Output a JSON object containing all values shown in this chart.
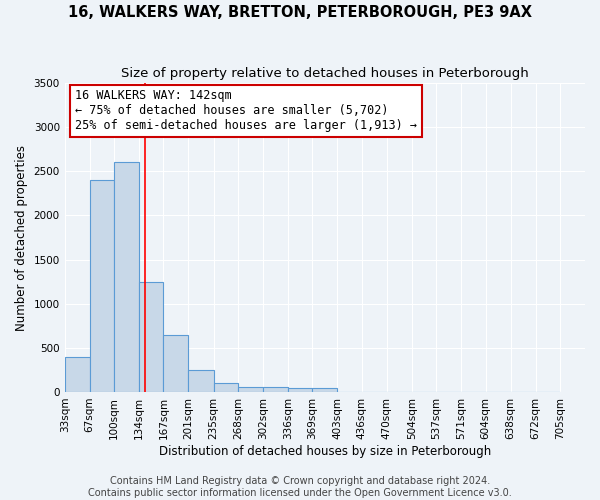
{
  "title": "16, WALKERS WAY, BRETTON, PETERBOROUGH, PE3 9AX",
  "subtitle": "Size of property relative to detached houses in Peterborough",
  "xlabel": "Distribution of detached houses by size in Peterborough",
  "ylabel": "Number of detached properties",
  "bar_edges": [
    33,
    67,
    100,
    134,
    167,
    201,
    235,
    268,
    302,
    336,
    369,
    403,
    436,
    470,
    504,
    537,
    571,
    604,
    638,
    672,
    705
  ],
  "bar_heights": [
    400,
    2400,
    2600,
    1250,
    640,
    250,
    100,
    60,
    60,
    40,
    40,
    0,
    0,
    0,
    0,
    0,
    0,
    0,
    0,
    0
  ],
  "bar_color": "#c8d8e8",
  "bar_edge_color": "#5b9bd5",
  "red_line_x": 142,
  "annotation_line1": "16 WALKERS WAY: 142sqm",
  "annotation_line2": "← 75% of detached houses are smaller (5,702)",
  "annotation_line3": "25% of semi-detached houses are larger (1,913) →",
  "annotation_box_color": "#ffffff",
  "annotation_box_edge_color": "#cc0000",
  "ylim": [
    0,
    3500
  ],
  "yticks": [
    0,
    500,
    1000,
    1500,
    2000,
    2500,
    3000,
    3500
  ],
  "footer_line1": "Contains HM Land Registry data © Crown copyright and database right 2024.",
  "footer_line2": "Contains public sector information licensed under the Open Government Licence v3.0.",
  "bg_color": "#eef3f8",
  "grid_color": "#ffffff",
  "title_fontsize": 10.5,
  "subtitle_fontsize": 9.5,
  "axis_label_fontsize": 8.5,
  "tick_fontsize": 7.5,
  "annotation_fontsize": 8.5,
  "footer_fontsize": 7
}
